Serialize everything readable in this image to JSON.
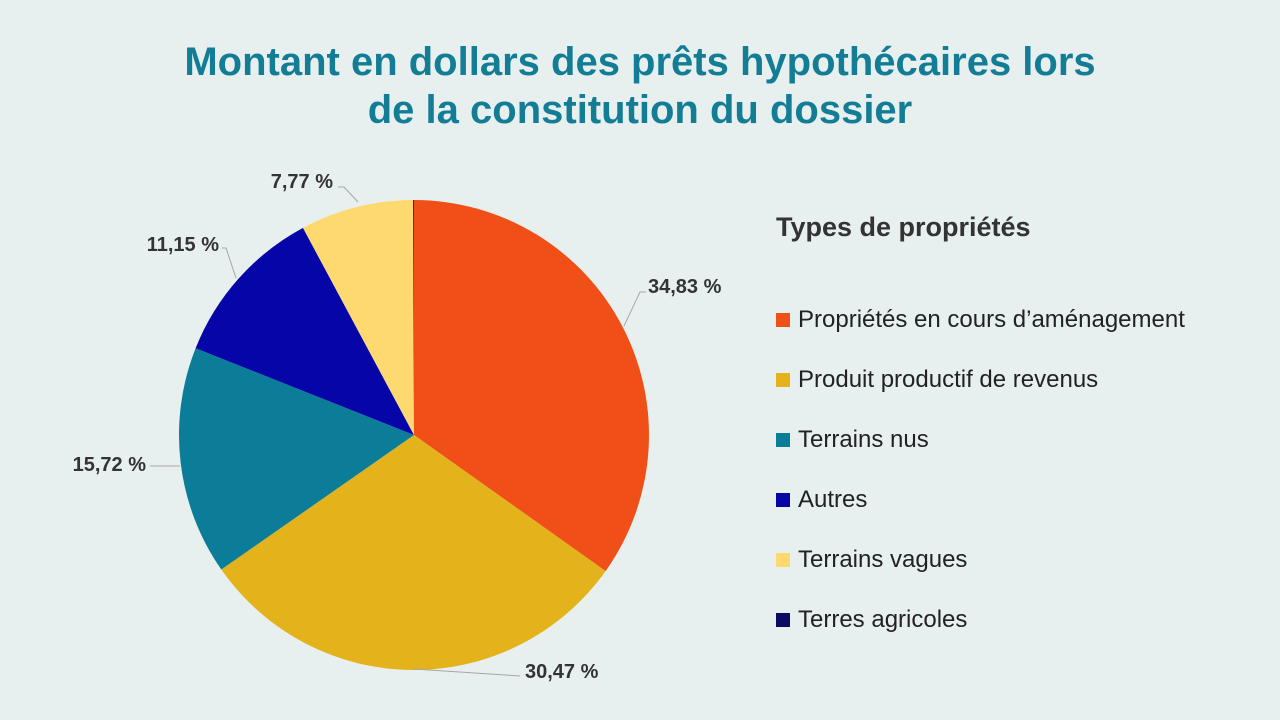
{
  "chart_data": {
    "type": "pie",
    "title_lines": [
      "Montant en dollars des prêts hypothécaires lors",
      "de la constitution du dossier"
    ],
    "legend_title": "Types de propriétés",
    "legend_position": "right",
    "slices": [
      {
        "label": "Propriétés en cours d’aménagement",
        "value": 34.83,
        "display": "34,83 %",
        "color": "#f05018"
      },
      {
        "label": "Produit productif de revenus",
        "value": 30.47,
        "display": "30,47 %",
        "color": "#e4b31c"
      },
      {
        "label": "Terrains nus",
        "value": 15.72,
        "display": "15,72 %",
        "color": "#0b7d98"
      },
      {
        "label": "Autres",
        "value": 11.15,
        "display": "11,15 %",
        "color": "#0606a8"
      },
      {
        "label": "Terrains vagues",
        "value": 7.77,
        "display": "7,77 %",
        "color": "#fed970"
      },
      {
        "label": "Terres agricoles",
        "value": 0.06,
        "display": "",
        "color": "#0b0b64"
      }
    ]
  }
}
